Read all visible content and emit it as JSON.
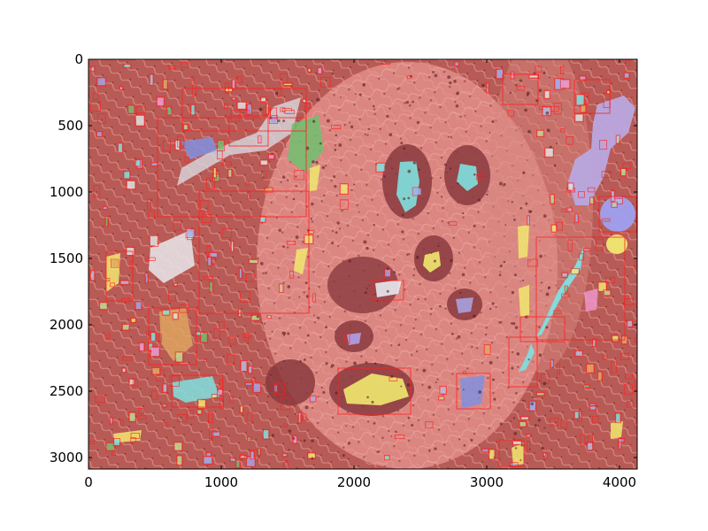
{
  "figure": {
    "kind": "segmentation overlay on histology image",
    "background_color": "#ffffff",
    "tissue_tint": "#c86862",
    "box_color": "#ff2020"
  },
  "axes": {
    "x_ticks": [
      "0",
      "1000",
      "2000",
      "3000",
      "4000"
    ],
    "y_ticks": [
      "0",
      "500",
      "1000",
      "1500",
      "2000",
      "2500",
      "3000"
    ],
    "xlim": [
      0,
      4140
    ],
    "ylim": [
      3090,
      0
    ]
  },
  "palette": [
    "#7fe0e0",
    "#f0e870",
    "#a8a0e0",
    "#f09ad0",
    "#70c070",
    "#e0a860",
    "#b8b8e0",
    "#e0e0e0",
    "#9fb0f0",
    "#c0d890"
  ]
}
